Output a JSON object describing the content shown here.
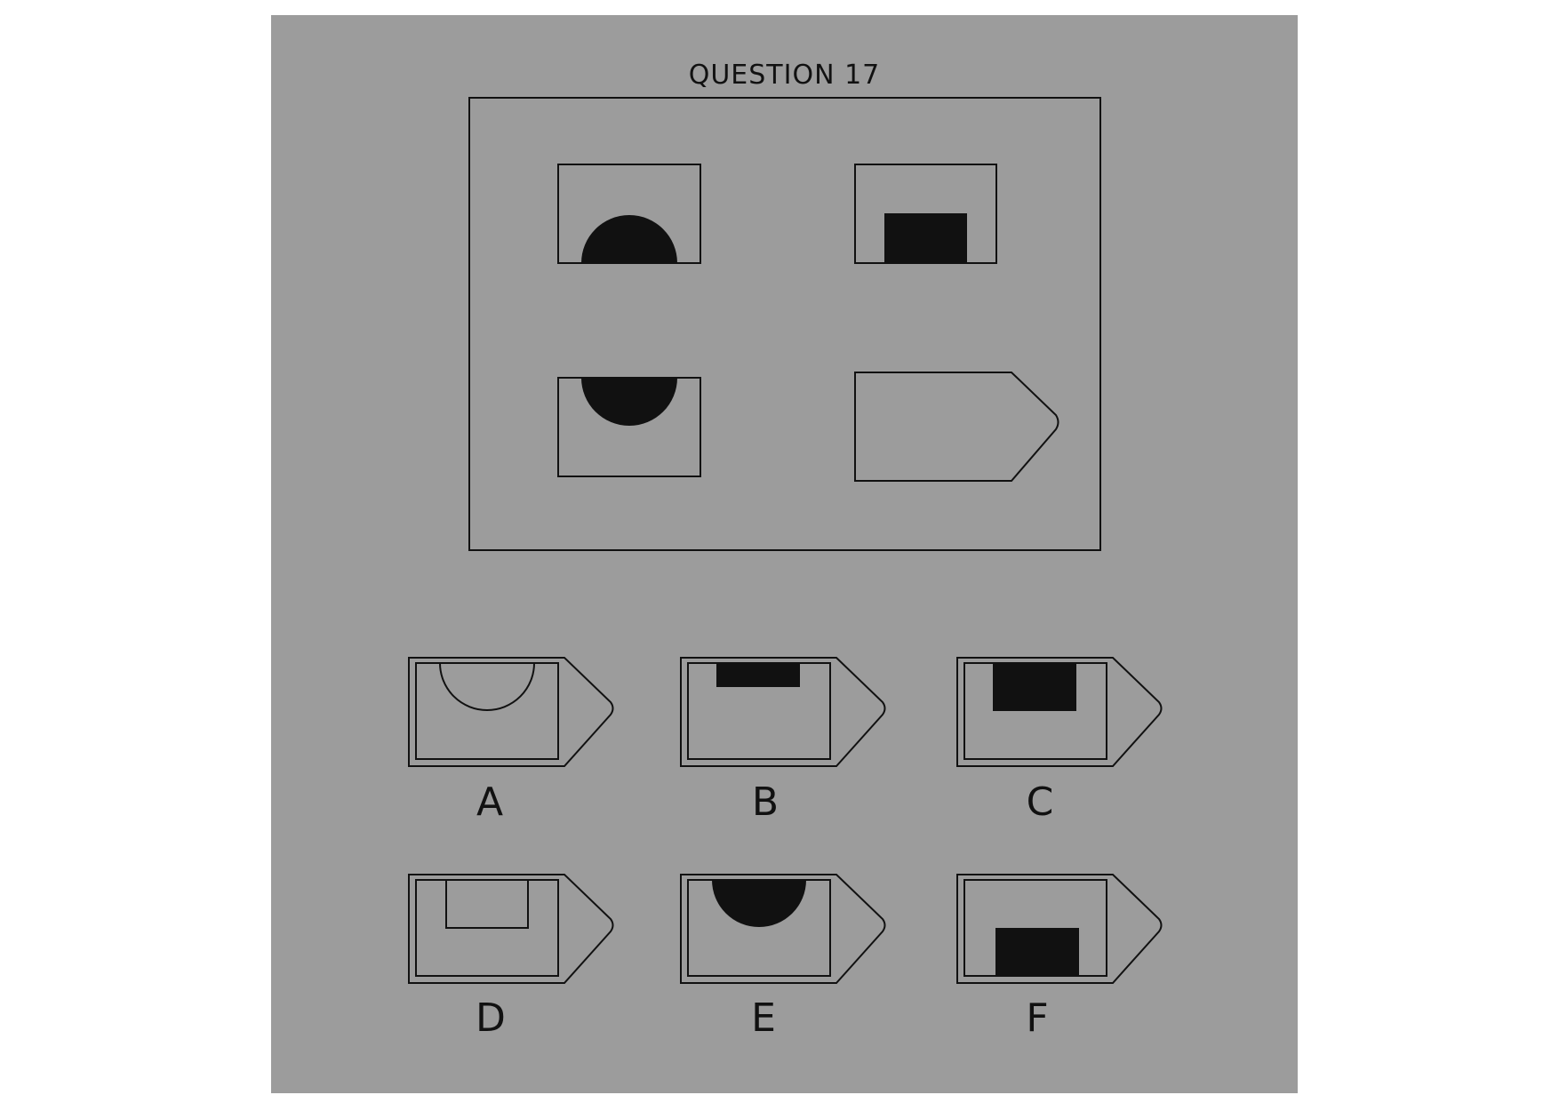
{
  "title": "QUESTION 17",
  "colors": {
    "background": "#9c9c9c",
    "ink": "#111111"
  },
  "puzzle": {
    "cells": [
      {
        "frame": "rectangle",
        "symbol": "half-circle",
        "position": "bottom"
      },
      {
        "frame": "rectangle",
        "symbol": "block",
        "position": "bottom"
      },
      {
        "frame": "rectangle",
        "symbol": "half-circle",
        "position": "top"
      },
      {
        "frame": "arrow-tag",
        "symbol": "none",
        "position": "none"
      }
    ]
  },
  "options": [
    {
      "label": "A",
      "symbol": "half-circle-outline",
      "position": "top"
    },
    {
      "label": "B",
      "symbol": "thin-block",
      "position": "top"
    },
    {
      "label": "C",
      "symbol": "block",
      "position": "top"
    },
    {
      "label": "D",
      "symbol": "block-outline",
      "position": "top"
    },
    {
      "label": "E",
      "symbol": "half-circle",
      "position": "top"
    },
    {
      "label": "F",
      "symbol": "block",
      "position": "bottom"
    }
  ]
}
